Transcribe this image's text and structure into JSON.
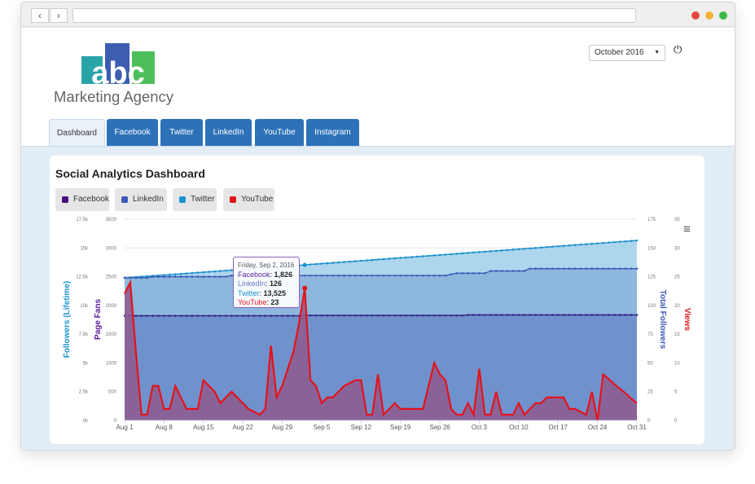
{
  "browser": {
    "back": "‹",
    "forward": "›"
  },
  "logo": {
    "letters": "abc",
    "name": "Marketing Agency"
  },
  "header": {
    "month_select": "October 2016",
    "power_icon": "⏻"
  },
  "tabs": [
    "Dashboard",
    "Facebook",
    "Twitter",
    "LinkedIn",
    "YouTube",
    "Instagram"
  ],
  "dashboard": {
    "title": "Social Analytics Dashboard",
    "menu_icon": "≡",
    "legend": [
      {
        "label": "Facebook",
        "color": "#4b0f82"
      },
      {
        "label": "LinkedIn",
        "color": "#3e58b8"
      },
      {
        "label": "Twitter",
        "color": "#1a93cf"
      },
      {
        "label": "YouTube",
        "color": "#e0141b"
      }
    ]
  },
  "tooltip": {
    "date": "Friday, Sep 2, 2016",
    "rows": [
      {
        "label": "Facebook",
        "value": "1,826",
        "color": "#5a2a9a"
      },
      {
        "label": "LinkedIn",
        "value": "126",
        "color": "#6a7ac8"
      },
      {
        "label": "Twitter",
        "value": "13,525",
        "color": "#1a93cf"
      },
      {
        "label": "YouTube",
        "value": "23",
        "color": "#e0141b"
      }
    ]
  },
  "chart_data": {
    "type": "area",
    "x_start": "Aug 1",
    "x_end": "Oct 31",
    "x_ticks": [
      "Aug 1",
      "Aug 8",
      "Aug 15",
      "Aug 22",
      "Aug 29",
      "Sep 5",
      "Sep 12",
      "Sep 19",
      "Sep 26",
      "Oct 3",
      "Oct 10",
      "Oct 17",
      "Oct 24",
      "Oct 31"
    ],
    "axes": {
      "followers": {
        "title": "Followers (Lifetime)",
        "range": [
          0,
          17500
        ],
        "ticks": [
          "0k",
          "2.5k",
          "5k",
          "7.5k",
          "10k",
          "12.5k",
          "15k",
          "17.5k"
        ],
        "color": "#1a93cf"
      },
      "page_fans": {
        "title": "Page Fans",
        "range": [
          0,
          3500
        ],
        "ticks": [
          "0",
          "500",
          "1000",
          "1500",
          "2000",
          "2500",
          "3000",
          "3500"
        ],
        "color": "#5a1a9a"
      },
      "total_followers": {
        "title": "Total Followers",
        "range": [
          0,
          175
        ],
        "ticks": [
          "0",
          "25",
          "50",
          "75",
          "100",
          "125",
          "150",
          "175"
        ],
        "color": "#3e58b8"
      },
      "views": {
        "title": "Views",
        "range": [
          0,
          35
        ],
        "ticks": [
          "0",
          "5",
          "10",
          "15",
          "20",
          "25",
          "30",
          "35"
        ],
        "color": "#e0141b"
      }
    },
    "series": [
      {
        "name": "Twitter",
        "axis": "followers",
        "fill": "#add6ec",
        "line": "#1a8fcf",
        "values": [
          12400,
          12435,
          12470,
          12505,
          12540,
          12575,
          12610,
          12645,
          12680,
          12715,
          12750,
          12785,
          12820,
          12855,
          12890,
          12925,
          12960,
          12995,
          13030,
          13065,
          13100,
          13135,
          13170,
          13205,
          13240,
          13275,
          13310,
          13345,
          13380,
          13415,
          13450,
          13485,
          13525,
          13561,
          13597,
          13633,
          13669,
          13705,
          13741,
          13777,
          13813,
          13849,
          13885,
          13921,
          13957,
          13993,
          14029,
          14065,
          14101,
          14137,
          14173,
          14209,
          14245,
          14281,
          14317,
          14353,
          14389,
          14425,
          14461,
          14497,
          14533,
          14569,
          14605,
          14641,
          14677,
          14713,
          14749,
          14785,
          14821,
          14857,
          14893,
          14929,
          14965,
          15001,
          15037,
          15073,
          15109,
          15145,
          15181,
          15217,
          15253,
          15289,
          15325,
          15361,
          15397,
          15433,
          15469,
          15505,
          15541,
          15577,
          15613,
          15649
        ]
      },
      {
        "name": "LinkedIn",
        "axis": "total_followers",
        "fill": "#8db7dd",
        "line": "#3a5cb8",
        "values": [
          124,
          124,
          124,
          124,
          124,
          125,
          125,
          125,
          125,
          125,
          125,
          125,
          125,
          125,
          125,
          125,
          125,
          125,
          125,
          126,
          126,
          126,
          126,
          126,
          126,
          126,
          126,
          126,
          126,
          126,
          126,
          126,
          126,
          126,
          126,
          126,
          126,
          126,
          126,
          126,
          126,
          126,
          126,
          126,
          126,
          126,
          126,
          126,
          126,
          126,
          126,
          126,
          126,
          126,
          126,
          126,
          126,
          126,
          127,
          128,
          128,
          128,
          128,
          128,
          128,
          130,
          130,
          130,
          130,
          130,
          130,
          130,
          132,
          132,
          132,
          132,
          132,
          132,
          132,
          132,
          132,
          132,
          132,
          132,
          132,
          132,
          132,
          132,
          132,
          132,
          132,
          132
        ]
      },
      {
        "name": "Facebook",
        "axis": "page_fans",
        "fill": "#6f92cd",
        "line": "#34248a",
        "values": [
          1820,
          1820,
          1820,
          1820,
          1820,
          1820,
          1820,
          1820,
          1820,
          1820,
          1820,
          1820,
          1820,
          1820,
          1820,
          1820,
          1820,
          1820,
          1820,
          1820,
          1820,
          1820,
          1820,
          1820,
          1820,
          1820,
          1820,
          1820,
          1820,
          1820,
          1820,
          1820,
          1826,
          1826,
          1826,
          1826,
          1826,
          1826,
          1826,
          1826,
          1826,
          1826,
          1826,
          1826,
          1826,
          1826,
          1826,
          1826,
          1826,
          1826,
          1826,
          1826,
          1826,
          1826,
          1826,
          1826,
          1826,
          1826,
          1826,
          1826,
          1826,
          1835,
          1835,
          1835,
          1835,
          1835,
          1835,
          1835,
          1835,
          1835,
          1835,
          1835,
          1835,
          1835,
          1835,
          1835,
          1835,
          1835,
          1835,
          1835,
          1835,
          1835,
          1835,
          1835,
          1835,
          1835,
          1835,
          1835,
          1835,
          1835,
          1835,
          1835
        ]
      },
      {
        "name": "YouTube",
        "axis": "views",
        "fill": "#8e5a8e",
        "line": "#e5121a",
        "values": [
          22,
          24,
          12,
          1,
          1,
          6,
          6,
          2,
          2,
          6,
          4,
          2,
          2,
          2,
          7,
          6,
          5,
          3,
          4,
          5,
          4,
          3,
          2,
          1.5,
          1,
          2,
          13,
          4,
          6,
          9,
          12,
          17,
          23,
          7,
          6,
          3,
          4,
          4,
          5,
          6,
          6.5,
          7,
          7,
          1,
          1,
          8,
          1,
          2,
          3,
          2,
          2,
          2,
          2,
          2,
          6,
          10,
          8,
          7,
          2,
          1,
          1,
          3,
          1,
          9,
          1,
          1,
          5,
          1,
          1,
          1,
          3,
          1,
          2,
          3,
          3,
          4,
          4,
          4,
          4,
          2,
          2,
          1.5,
          1,
          5,
          0,
          8,
          7.2,
          6.3,
          5.5,
          4.7,
          3.8,
          3
        ]
      }
    ]
  }
}
